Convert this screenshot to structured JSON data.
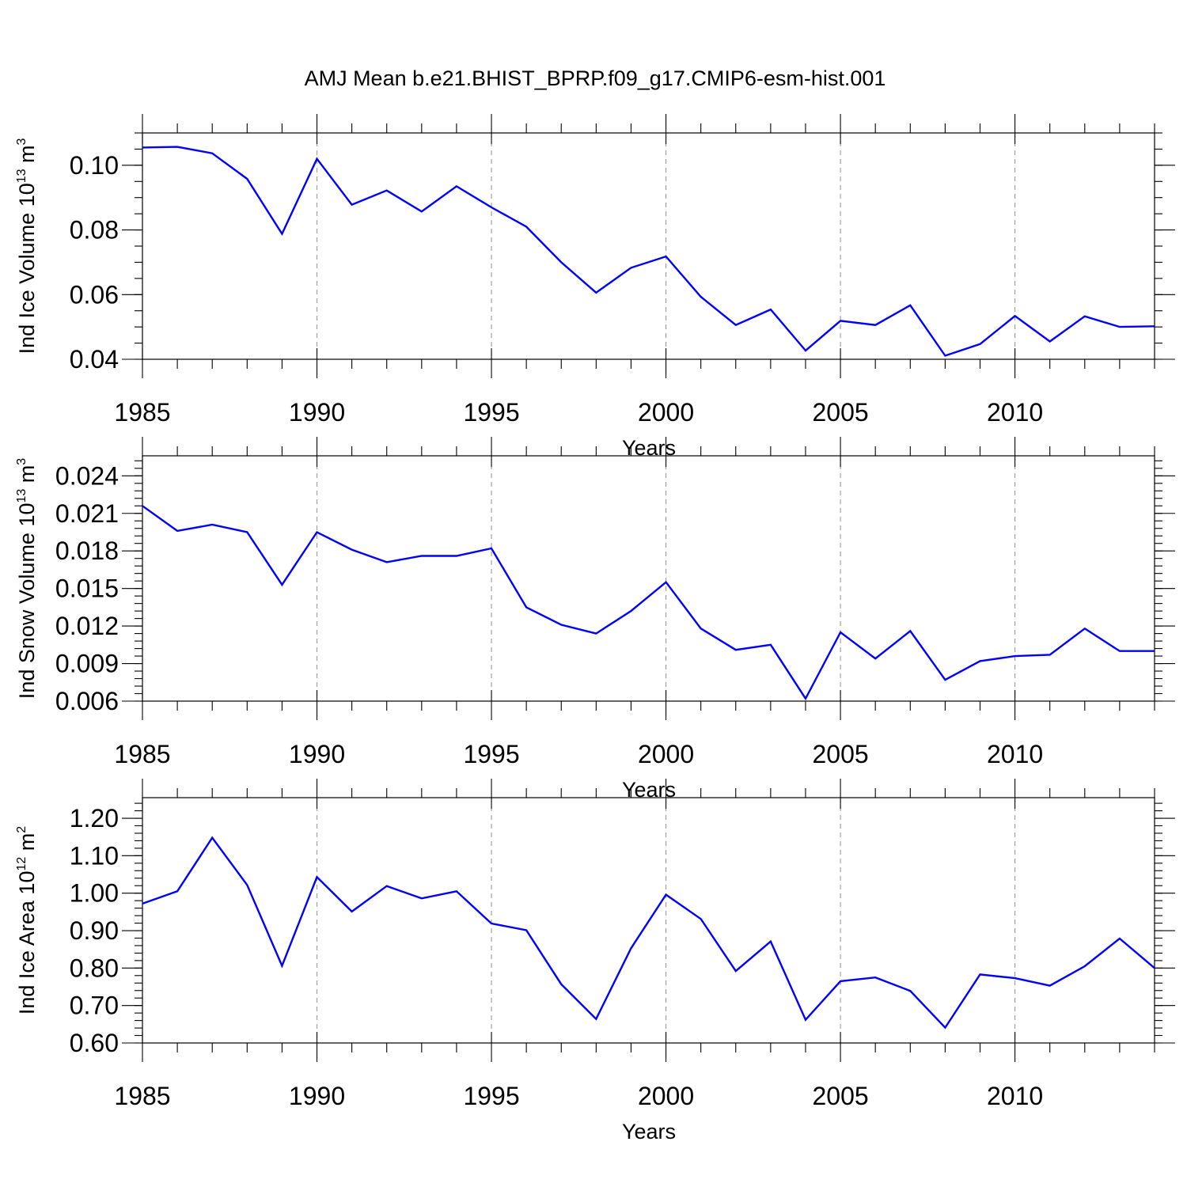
{
  "title": "AMJ Mean b.e21.BHIST_BPRP.f09_g17.CMIP6-esm-hist.001",
  "chart_data": [
    {
      "type": "line",
      "ylabel": "Ind Ice Volume 10",
      "ylabel_exp": "13",
      "ylabel_unit": " m",
      "ylabel_unit_exp": "3",
      "xlabel": "Years",
      "xlim": [
        1985,
        2014
      ],
      "ylim": [
        0.04,
        0.11
      ],
      "xticks": [
        1985,
        1990,
        1995,
        2000,
        2005,
        2010
      ],
      "xtick_labels": [
        "1985",
        "1990",
        "1995",
        "2000",
        "2005",
        "2010"
      ],
      "yticks": [
        0.04,
        0.06,
        0.08,
        0.1
      ],
      "ytick_labels": [
        "0.04",
        "0.06",
        "0.08",
        "0.10"
      ],
      "y_minor_step": 0.005,
      "x": [
        1985,
        1986,
        1987,
        1988,
        1989,
        1990,
        1991,
        1992,
        1993,
        1994,
        1995,
        1996,
        1997,
        1998,
        1999,
        2000,
        2001,
        2002,
        2003,
        2004,
        2005,
        2006,
        2007,
        2008,
        2009,
        2010,
        2011,
        2012,
        2013,
        2014
      ],
      "values": [
        0.1055,
        0.1057,
        0.1037,
        0.0958,
        0.0788,
        0.102,
        0.0878,
        0.0922,
        0.0857,
        0.0935,
        0.087,
        0.081,
        0.07,
        0.0606,
        0.0683,
        0.0718,
        0.0593,
        0.0506,
        0.0554,
        0.0427,
        0.0519,
        0.0506,
        0.0567,
        0.0411,
        0.0447,
        0.0534,
        0.0455,
        0.0533,
        0.05,
        0.0502
      ],
      "color": "#0000ff",
      "grid": "dashed vertical"
    },
    {
      "type": "line",
      "ylabel": "Ind Snow Volume 10",
      "ylabel_exp": "13",
      "ylabel_unit": " m",
      "ylabel_unit_exp": "3",
      "xlabel": "Years",
      "xlim": [
        1985,
        2014
      ],
      "ylim": [
        0.006,
        0.0256
      ],
      "xticks": [
        1985,
        1990,
        1995,
        2000,
        2005,
        2010
      ],
      "xtick_labels": [
        "1985",
        "1990",
        "1995",
        "2000",
        "2005",
        "2010"
      ],
      "yticks": [
        0.006,
        0.009,
        0.012,
        0.015,
        0.018,
        0.021,
        0.024
      ],
      "ytick_labels": [
        "0.006",
        "0.009",
        "0.012",
        "0.015",
        "0.018",
        "0.021",
        "0.024"
      ],
      "y_minor_step": 0.0006,
      "x": [
        1985,
        1986,
        1987,
        1988,
        1989,
        1990,
        1991,
        1992,
        1993,
        1994,
        1995,
        1996,
        1997,
        1998,
        1999,
        2000,
        2001,
        2002,
        2003,
        2004,
        2005,
        2006,
        2007,
        2008,
        2009,
        2010,
        2011,
        2012,
        2013,
        2014
      ],
      "values": [
        0.0216,
        0.0196,
        0.0201,
        0.0195,
        0.0153,
        0.0195,
        0.0181,
        0.0171,
        0.0176,
        0.0176,
        0.0182,
        0.0135,
        0.0121,
        0.0114,
        0.0132,
        0.0155,
        0.0118,
        0.0101,
        0.0105,
        0.0062,
        0.0115,
        0.0094,
        0.0116,
        0.0077,
        0.0092,
        0.0096,
        0.0097,
        0.0118,
        0.01,
        0.01
      ],
      "color": "#0000ff",
      "grid": "dashed vertical"
    },
    {
      "type": "line",
      "ylabel": "Ind Ice Area 10",
      "ylabel_exp": "12",
      "ylabel_unit": " m",
      "ylabel_unit_exp": "2",
      "xlabel": "Years",
      "xlim": [
        1985,
        2014
      ],
      "ylim": [
        0.6,
        1.255
      ],
      "xticks": [
        1985,
        1990,
        1995,
        2000,
        2005,
        2010
      ],
      "xtick_labels": [
        "1985",
        "1990",
        "1995",
        "2000",
        "2005",
        "2010"
      ],
      "yticks": [
        0.6,
        0.7,
        0.8,
        0.9,
        1.0,
        1.1,
        1.2
      ],
      "ytick_labels": [
        "0.60",
        "0.70",
        "0.80",
        "0.90",
        "1.00",
        "1.10",
        "1.20"
      ],
      "y_minor_step": 0.02,
      "x": [
        1985,
        1986,
        1987,
        1988,
        1989,
        1990,
        1991,
        1992,
        1993,
        1994,
        1995,
        1996,
        1997,
        1998,
        1999,
        2000,
        2001,
        2002,
        2003,
        2004,
        2005,
        2006,
        2007,
        2008,
        2009,
        2010,
        2011,
        2012,
        2013,
        2014
      ],
      "values": [
        0.972,
        1.005,
        1.148,
        1.022,
        0.806,
        1.043,
        0.951,
        1.019,
        0.986,
        1.005,
        0.919,
        0.901,
        0.757,
        0.664,
        0.853,
        0.996,
        0.931,
        0.792,
        0.871,
        0.662,
        0.765,
        0.775,
        0.739,
        0.641,
        0.783,
        0.773,
        0.753,
        0.805,
        0.879,
        0.8
      ],
      "color": "#0000ff",
      "grid": "dashed vertical"
    }
  ]
}
